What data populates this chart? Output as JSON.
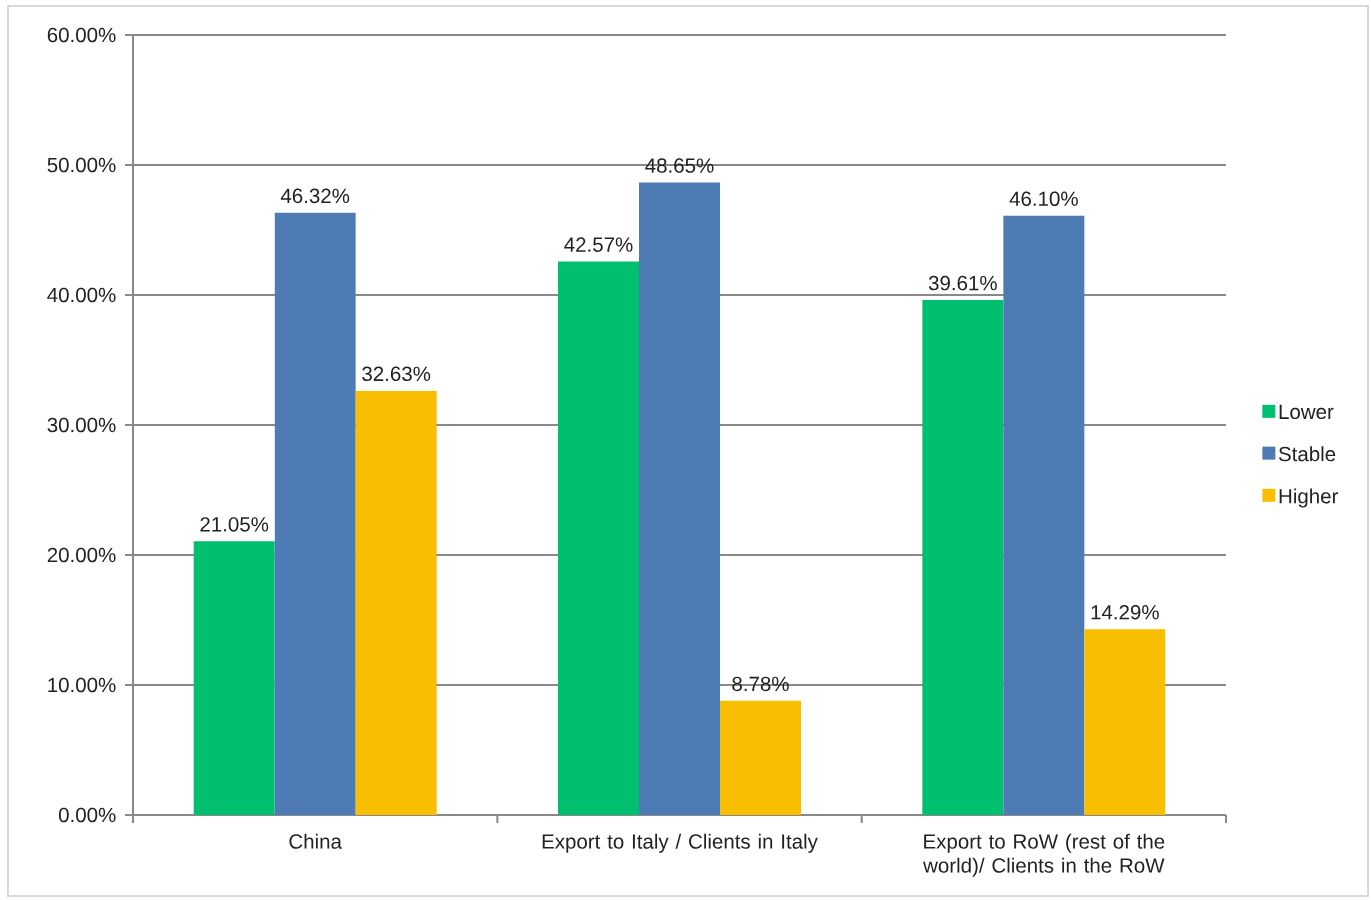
{
  "chart_data": {
    "type": "bar",
    "categories": [
      "China",
      "Export to Italy / Clients in Italy",
      "Export to RoW (rest of the world)/ Clients in the RoW"
    ],
    "series": [
      {
        "name": "Lower",
        "color": "#00bf6f",
        "values": [
          21.05,
          42.57,
          39.61
        ],
        "value_labels": [
          "21.05%",
          "42.57%",
          "39.61%"
        ]
      },
      {
        "name": "Stable",
        "color": "#4f7bb4",
        "values": [
          46.32,
          48.65,
          46.1
        ],
        "value_labels": [
          "46.32%",
          "48.65%",
          "46.10%"
        ]
      },
      {
        "name": "Higher",
        "color": "#f8be00",
        "values": [
          32.63,
          8.78,
          14.29
        ],
        "value_labels": [
          "32.63%",
          "8.78%",
          "14.29%"
        ]
      }
    ],
    "ylim": [
      0,
      60
    ],
    "yticks": [
      {
        "value": 0,
        "label": "0.00%"
      },
      {
        "value": 10,
        "label": "10.00%"
      },
      {
        "value": 20,
        "label": "20.00%"
      },
      {
        "value": 30,
        "label": "30.00%"
      },
      {
        "value": 40,
        "label": "40.00%"
      },
      {
        "value": 50,
        "label": "50.00%"
      },
      {
        "value": 60,
        "label": "60.00%"
      }
    ],
    "grid": "y",
    "legend": "right"
  }
}
